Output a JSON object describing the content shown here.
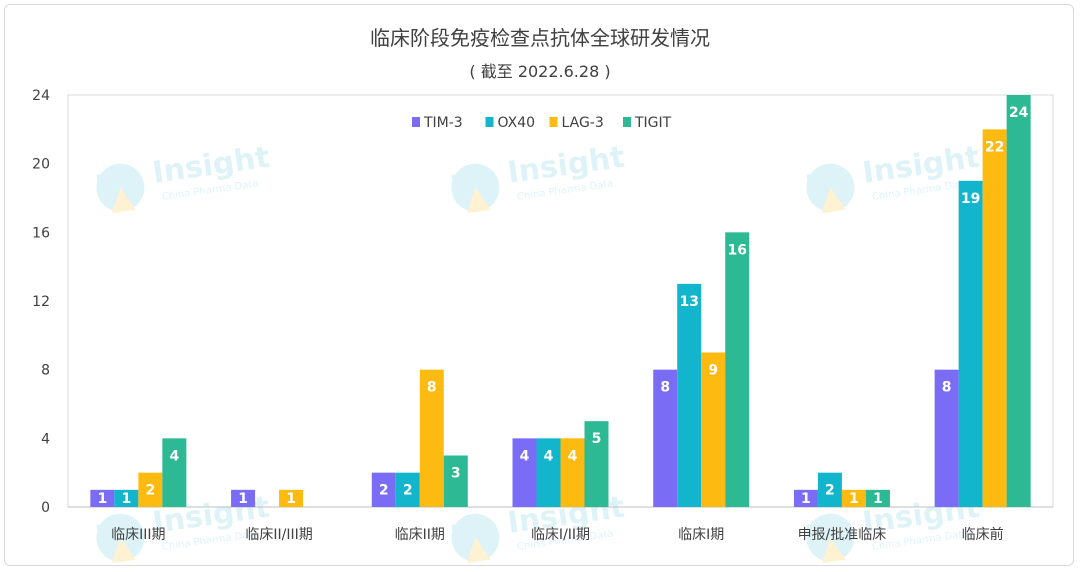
{
  "chart_data": {
    "type": "bar",
    "title": "临床阶段免疫检查点抗体全球研发情况",
    "subtitle": "( 截至 2022.6.28 )",
    "categories": [
      "临床III期",
      "临床II/III期",
      "临床II期",
      "临床I/II期",
      "临床I期",
      "申报/批准临床",
      "临床前"
    ],
    "series": [
      {
        "name": "TIM-3",
        "color": "#7b6cf6",
        "values": [
          1,
          1,
          2,
          4,
          8,
          1,
          8
        ]
      },
      {
        "name": "OX40",
        "color": "#13b5cc",
        "values": [
          1,
          0,
          2,
          4,
          13,
          2,
          19
        ]
      },
      {
        "name": "LAG-3",
        "color": "#fdbb11",
        "values": [
          2,
          1,
          8,
          4,
          9,
          1,
          22
        ]
      },
      {
        "name": "TIGIT",
        "color": "#2cb993",
        "values": [
          4,
          0,
          3,
          5,
          16,
          1,
          24
        ]
      }
    ],
    "ylim": [
      0,
      24
    ],
    "yticks": [
      0,
      4,
      8,
      12,
      16,
      20,
      24
    ],
    "grid": false,
    "legend_position": "top-center",
    "xlabel": "",
    "ylabel": ""
  },
  "watermark": {
    "title": "Insight",
    "subtitle": "China Pharma Data",
    "icon": "insight-logo-icon"
  }
}
